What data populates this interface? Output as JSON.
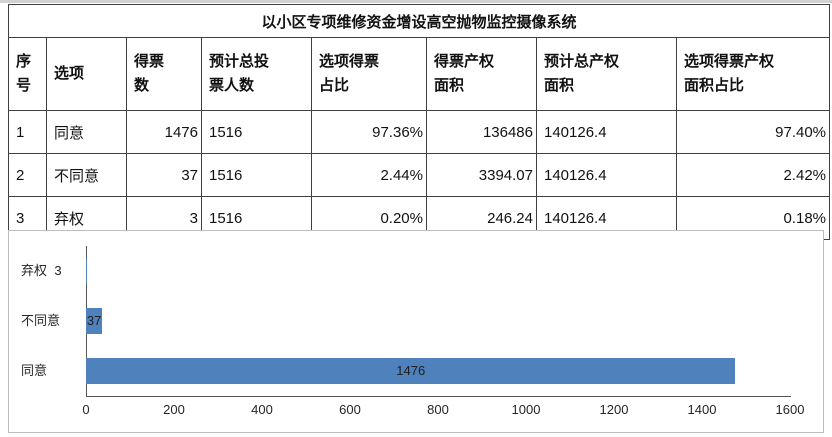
{
  "title": "以小区专项维修资金增设高空抛物监控摄像系统",
  "table": {
    "headers": [
      "序\n号",
      "选项",
      "得票\n数",
      "预计总投\n票人数",
      "选项得票\n占比",
      "得票产权\n面积",
      "预计总产权\n面积",
      "选项得票产权\n面积占比"
    ],
    "rows": [
      {
        "no": "1",
        "option": "同意",
        "votes": "1476",
        "total_voters": "1516",
        "vote_pct": "97.36%",
        "vote_area": "136486",
        "total_area": "140126.4",
        "area_pct": "97.40%"
      },
      {
        "no": "2",
        "option": "不同意",
        "votes": "37",
        "total_voters": "1516",
        "vote_pct": "2.44%",
        "vote_area": "3394.07",
        "total_area": "140126.4",
        "area_pct": "2.42%"
      },
      {
        "no": "3",
        "option": "弃权",
        "votes": "3",
        "total_voters": "1516",
        "vote_pct": "0.20%",
        "vote_area": "246.24",
        "total_area": "140126.4",
        "area_pct": "0.18%"
      }
    ]
  },
  "chart_data": {
    "type": "bar",
    "orientation": "horizontal",
    "categories": [
      "弃权",
      "不同意",
      "同意"
    ],
    "values": [
      3,
      37,
      1476
    ],
    "data_labels": [
      "3",
      "37",
      "1476"
    ],
    "x_ticks": [
      0,
      200,
      400,
      600,
      800,
      1000,
      1200,
      1400,
      1600
    ],
    "xlim": [
      0,
      1600
    ],
    "bar_color": "#4F81BD",
    "legend": "none",
    "grid": "off"
  }
}
